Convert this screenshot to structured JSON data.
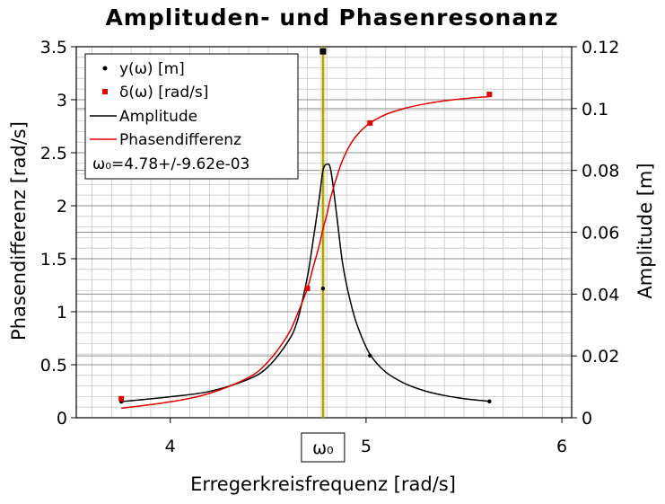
{
  "chart_data": {
    "type": "line",
    "title": "Amplituden- und Phasenresonanz",
    "xlabel": "Erregerkreisfrequenz [rad/s]",
    "ylabel_left": "Phasendifferenz [rad/s]",
    "ylabel_right": "Amplitude [m]",
    "xlim": [
      3.52,
      6.05
    ],
    "ylim_left": [
      0,
      3.5
    ],
    "ylim_right": [
      0,
      0.12
    ],
    "xticks": [
      "4",
      "5",
      "6"
    ],
    "xtick_values": [
      4,
      5,
      6
    ],
    "yticks_left": [
      "0",
      "0.5",
      "1",
      "1.5",
      "2",
      "2.5",
      "3",
      "3.5"
    ],
    "yticks_left_values": [
      0,
      0.5,
      1,
      1.5,
      2,
      2.5,
      3,
      3.5
    ],
    "yticks_right": [
      "0",
      "0.02",
      "0.04",
      "0.06",
      "0.08",
      "0.1",
      "0.12"
    ],
    "yticks_right_values": [
      0,
      0.02,
      0.04,
      0.06,
      0.08,
      0.1,
      0.12
    ],
    "grid": true,
    "legend_position": "top-left",
    "series": [
      {
        "name": "y(ω) [m]",
        "kind": "points",
        "axis": "right",
        "color": "#000000",
        "x": [
          3.75,
          4.78,
          5.02,
          5.63
        ],
        "y": [
          0.0052,
          0.0418,
          0.0201,
          0.0053
        ]
      },
      {
        "name": "δ(ω) [rad/s]",
        "kind": "points",
        "axis": "left",
        "color": "#e00000",
        "x": [
          3.75,
          4.7,
          5.02,
          5.63
        ],
        "y": [
          0.18,
          1.22,
          2.78,
          3.05
        ]
      },
      {
        "name": "Amplitude",
        "kind": "line",
        "axis": "right",
        "color": "#000000",
        "x": [
          3.75,
          4.0,
          4.2,
          4.4,
          4.5,
          4.6,
          4.65,
          4.7,
          4.73,
          4.76,
          4.78,
          4.8,
          4.82,
          4.85,
          4.88,
          4.92,
          4.96,
          5.02,
          5.1,
          5.2,
          5.3,
          5.4,
          5.5,
          5.63
        ],
        "y": [
          0.0052,
          0.0068,
          0.0085,
          0.0125,
          0.0165,
          0.0245,
          0.0315,
          0.0455,
          0.0575,
          0.0705,
          0.08,
          0.082,
          0.08,
          0.0655,
          0.05,
          0.0375,
          0.029,
          0.0205,
          0.0148,
          0.011,
          0.0087,
          0.0072,
          0.0062,
          0.0053
        ]
      },
      {
        "name": "Phasendifferenz",
        "kind": "line",
        "axis": "left",
        "color": "#e00000",
        "x": [
          3.75,
          4.0,
          4.2,
          4.4,
          4.5,
          4.6,
          4.65,
          4.7,
          4.73,
          4.76,
          4.78,
          4.8,
          4.82,
          4.85,
          4.88,
          4.92,
          4.96,
          5.02,
          5.1,
          5.2,
          5.3,
          5.4,
          5.5,
          5.63
        ],
        "y": [
          0.09,
          0.15,
          0.23,
          0.38,
          0.53,
          0.78,
          0.98,
          1.22,
          1.42,
          1.62,
          1.78,
          1.92,
          2.08,
          2.27,
          2.43,
          2.58,
          2.68,
          2.78,
          2.86,
          2.92,
          2.96,
          2.99,
          3.01,
          3.03
        ]
      }
    ],
    "annotations": {
      "omega0_text": "ω₀=4.78+/-9.62e-03",
      "omega0_value": 4.78,
      "omega0_error": 0.00962,
      "omega0_tick_label": "ω₀",
      "omega0_line_color": "#8a9a1a",
      "omega0_band_color": "#e8c020",
      "omega0_marker": {
        "value": 0.1185,
        "axis": "right",
        "color": "#000000"
      }
    }
  }
}
